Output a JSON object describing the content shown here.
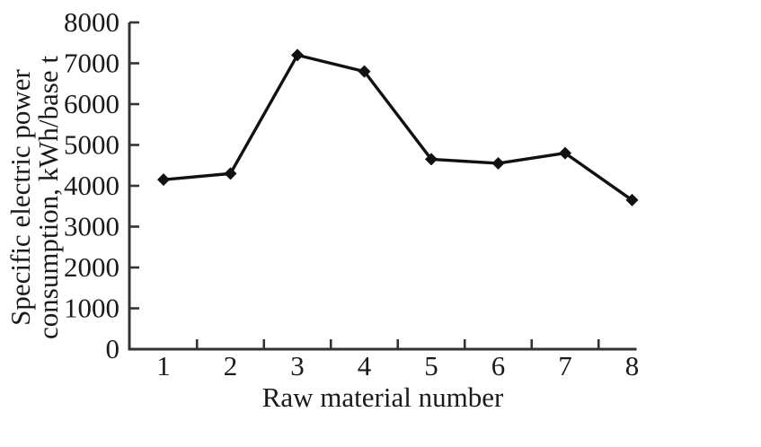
{
  "chart_data": {
    "type": "line",
    "title": "",
    "x": [
      1,
      2,
      3,
      4,
      5,
      6,
      7,
      8
    ],
    "xtick_labels": [
      "1",
      "2",
      "3",
      "4",
      "5",
      "6",
      "7",
      "8"
    ],
    "values": [
      4150,
      4300,
      7200,
      6800,
      4650,
      4550,
      4800,
      3650
    ],
    "series_name": "Specific electric power consumption",
    "xlabel": "Raw material number",
    "ylabel": "Specific electric power consumption, kWh/base t",
    "ylabel_lines": [
      "Specific electric power",
      "consumption, kWh/base t"
    ],
    "ylim": [
      0,
      8000
    ],
    "ytick_step": 1000,
    "ytick_labels": [
      "0",
      "1000",
      "2000",
      "3000",
      "4000",
      "5000",
      "6000",
      "7000",
      "8000"
    ],
    "grid": false,
    "legend_position": "none",
    "marker": "diamond",
    "colors": {
      "line": "#111111",
      "marker": "#111111",
      "axis": "#333333",
      "text": "#1a1a1a",
      "background": "#ffffff"
    }
  }
}
